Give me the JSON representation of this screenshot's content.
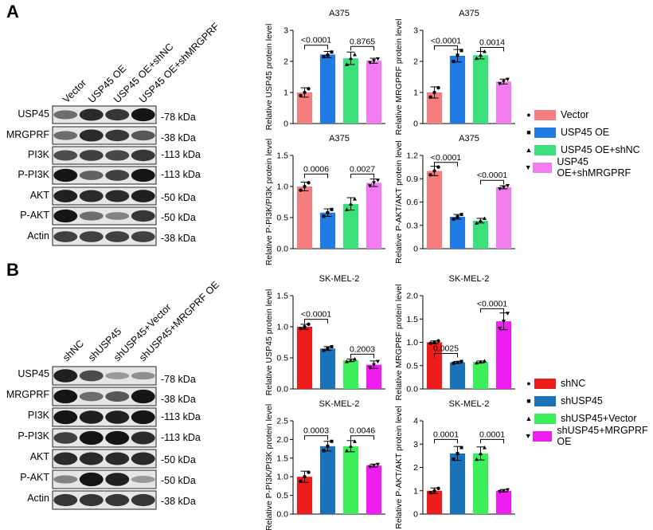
{
  "panels": [
    {
      "letter": "A",
      "lanes": [
        "Vector",
        "USP45 OE",
        "USP45 OE+shNC",
        "USP45 OE+shMRGPRF"
      ],
      "blots": [
        {
          "protein": "USP45",
          "kda": "-78 kDa"
        },
        {
          "protein": "MRGPRF",
          "kda": "-38 kDa"
        },
        {
          "protein": "PI3K",
          "kda": "-113 kDa"
        },
        {
          "protein": "P-PI3K",
          "kda": "-113 kDa"
        },
        {
          "protein": "AKT",
          "kda": "-50 kDa"
        },
        {
          "protein": "P-AKT",
          "kda": "-50 kDa"
        },
        {
          "protein": "Actin",
          "kda": "-38 kDa"
        }
      ],
      "band_intensity": [
        [
          0.55,
          0.85,
          0.8,
          0.95
        ],
        [
          0.55,
          0.85,
          0.8,
          0.65
        ],
        [
          0.7,
          0.75,
          0.72,
          0.8
        ],
        [
          0.95,
          0.6,
          0.75,
          0.95
        ],
        [
          0.9,
          0.85,
          0.85,
          0.9
        ],
        [
          0.95,
          0.55,
          0.45,
          0.8
        ],
        [
          0.75,
          0.75,
          0.75,
          0.75
        ]
      ],
      "legend": [
        "Vector",
        "USP45 OE",
        "USP45 OE+shNC",
        "USP45 OE+shMRGPRF"
      ],
      "legend_markers": [
        "●",
        "■",
        "▲",
        "▼"
      ]
    },
    {
      "letter": "B",
      "lanes": [
        "shNC",
        "shUSP45",
        "shUSP45+Vector",
        "shUSP45+MRGPRF OE"
      ],
      "blots": [
        {
          "protein": "USP45",
          "kda": "-78 kDa"
        },
        {
          "protein": "MRGPRF",
          "kda": "-38 kDa"
        },
        {
          "protein": "PI3K",
          "kda": "-113 kDa"
        },
        {
          "protein": "P-PI3K",
          "kda": "-113 kDa"
        },
        {
          "protein": "AKT",
          "kda": "-50 kDa"
        },
        {
          "protein": "P-AKT",
          "kda": "-50 kDa"
        },
        {
          "protein": "Actin",
          "kda": "-38 kDa"
        }
      ],
      "band_intensity": [
        [
          0.9,
          0.7,
          0.35,
          0.4
        ],
        [
          0.95,
          0.55,
          0.65,
          0.95
        ],
        [
          0.95,
          0.9,
          0.9,
          0.95
        ],
        [
          0.75,
          0.95,
          0.95,
          0.85
        ],
        [
          0.85,
          0.85,
          0.85,
          0.85
        ],
        [
          0.45,
          0.95,
          0.9,
          0.35
        ],
        [
          0.8,
          0.8,
          0.8,
          0.8
        ]
      ],
      "legend": [
        "shNC",
        "shUSP45",
        "shUSP45+Vector",
        "shUSP45+MRGPRF OE"
      ],
      "legend_markers": [
        "●",
        "■",
        "▲",
        "▼"
      ]
    }
  ],
  "colors": {
    "A": [
      "#f47e7e",
      "#1f7be3",
      "#3be07a",
      "#f07cf0"
    ],
    "B": [
      "#ee1d1d",
      "#1a73b8",
      "#3bee5a",
      "#ee1df0"
    ]
  },
  "chart_data": [
    {
      "type": "bar",
      "panel": "A",
      "title": "A375",
      "ylabel": "Relative USP45 protein level",
      "categories": [
        "Vector",
        "USP45 OE",
        "USP45 OE+shNC",
        "USP45 OE+shMRGPRF"
      ],
      "values": [
        1.0,
        2.22,
        2.1,
        2.02
      ],
      "errors": [
        0.15,
        0.1,
        0.2,
        0.08
      ],
      "points": [
        [
          0.9,
          1.0,
          1.12
        ],
        [
          2.15,
          2.2,
          2.3
        ],
        [
          1.9,
          2.1,
          2.22
        ],
        [
          1.96,
          2.02,
          2.08
        ]
      ],
      "ylim": [
        0,
        3
      ],
      "yticks": [
        "0",
        "1",
        "2",
        "3"
      ],
      "ytick_values": [
        0,
        1,
        2,
        3
      ],
      "comparisons": [
        {
          "from": 0,
          "to": 1,
          "label": "<0.0001",
          "y": 2.52
        },
        {
          "from": 2,
          "to": 3,
          "label": "0.8765",
          "y": 2.48
        }
      ]
    },
    {
      "type": "bar",
      "panel": "A",
      "title": "A375",
      "ylabel": "Relative MRGPRF protein level",
      "categories": [
        "Vector",
        "USP45 OE",
        "USP45 OE+shNC",
        "USP45 OE+shMRGPRF"
      ],
      "values": [
        1.0,
        2.18,
        2.2,
        1.35
      ],
      "errors": [
        0.18,
        0.2,
        0.12,
        0.08
      ],
      "points": [
        [
          0.85,
          1.0,
          1.15
        ],
        [
          2.0,
          2.2,
          2.35
        ],
        [
          2.1,
          2.2,
          2.32
        ],
        [
          1.28,
          1.35,
          1.42
        ]
      ],
      "ylim": [
        0,
        3
      ],
      "yticks": [
        "0",
        "1",
        "2",
        "3"
      ],
      "ytick_values": [
        0,
        1,
        2,
        3
      ],
      "comparisons": [
        {
          "from": 0,
          "to": 1,
          "label": "<0.0001",
          "y": 2.5
        },
        {
          "from": 2,
          "to": 3,
          "label": "0.0014",
          "y": 2.45
        }
      ]
    },
    {
      "type": "bar",
      "panel": "A",
      "title": "A375",
      "ylabel": "Relative P-PI3K/PI3K protein level",
      "categories": [
        "Vector",
        "USP45 OE",
        "USP45 OE+shNC",
        "USP45 OE+shMRGPRF"
      ],
      "values": [
        1.0,
        0.58,
        0.72,
        1.06
      ],
      "errors": [
        0.07,
        0.06,
        0.1,
        0.06
      ],
      "points": [
        [
          0.94,
          1.0,
          1.06
        ],
        [
          0.52,
          0.58,
          0.63
        ],
        [
          0.63,
          0.72,
          0.8
        ],
        [
          1.01,
          1.06,
          1.1
        ]
      ],
      "ylim": [
        0,
        1.5
      ],
      "yticks": [
        "0.0",
        "0.5",
        "1.0",
        "1.5"
      ],
      "ytick_values": [
        0,
        0.5,
        1.0,
        1.5
      ],
      "comparisons": [
        {
          "from": 0,
          "to": 1,
          "label": "0.0006",
          "y": 1.2
        },
        {
          "from": 2,
          "to": 3,
          "label": "0.0027",
          "y": 1.2
        }
      ]
    },
    {
      "type": "bar",
      "panel": "A",
      "title": "A375",
      "ylabel": "Relative P-AKT/AKT protein level",
      "categories": [
        "Vector",
        "USP45 OE",
        "USP45 OE+shNC",
        "USP45 OE+shMRGPRF"
      ],
      "values": [
        1.0,
        0.41,
        0.36,
        0.79
      ],
      "errors": [
        0.06,
        0.03,
        0.03,
        0.02
      ],
      "points": [
        [
          0.95,
          1.0,
          1.05
        ],
        [
          0.38,
          0.41,
          0.44
        ],
        [
          0.33,
          0.36,
          0.39
        ],
        [
          0.77,
          0.79,
          0.81
        ]
      ],
      "ylim": [
        0,
        1.2
      ],
      "yticks": [
        "0",
        "0.3",
        "0.6",
        "0.9",
        "1.2"
      ],
      "ytick_values": [
        0,
        0.3,
        0.6,
        0.9,
        1.2
      ],
      "comparisons": [
        {
          "from": 0,
          "to": 1,
          "label": "<0.0001",
          "y": 1.11
        },
        {
          "from": 2,
          "to": 3,
          "label": "<0.0001",
          "y": 0.88
        }
      ]
    },
    {
      "type": "bar",
      "panel": "B",
      "title": "SK-MEL-2",
      "ylabel": "Relative USP45 protein level",
      "categories": [
        "shNC",
        "shUSP45",
        "shUSP45+Vector",
        "shUSP45+MRGPRF OE"
      ],
      "values": [
        1.0,
        0.65,
        0.46,
        0.39
      ],
      "errors": [
        0.04,
        0.03,
        0.02,
        0.06
      ],
      "points": [
        [
          0.97,
          1.0,
          1.04
        ],
        [
          0.62,
          0.65,
          0.68
        ],
        [
          0.44,
          0.46,
          0.48
        ],
        [
          0.34,
          0.39,
          0.44
        ]
      ],
      "ylim": [
        0,
        1.5
      ],
      "yticks": [
        "0.0",
        "0.5",
        "1.0",
        "1.5"
      ],
      "ytick_values": [
        0,
        0.5,
        1.0,
        1.5
      ],
      "comparisons": [
        {
          "from": 0,
          "to": 1,
          "label": "<0.0001",
          "y": 1.12
        },
        {
          "from": 2,
          "to": 3,
          "label": "0.2003",
          "y": 0.56
        }
      ]
    },
    {
      "type": "bar",
      "panel": "B",
      "title": "SK-MEL-2",
      "ylabel": "Relative MRGPRF protein level",
      "categories": [
        "shNC",
        "shUSP45",
        "shUSP45+Vector",
        "shUSP45+MRGPRF OE"
      ],
      "values": [
        1.0,
        0.57,
        0.58,
        1.45
      ],
      "errors": [
        0.03,
        0.02,
        0.02,
        0.18
      ],
      "points": [
        [
          0.98,
          1.0,
          1.03
        ],
        [
          0.55,
          0.57,
          0.59
        ],
        [
          0.56,
          0.58,
          0.6
        ],
        [
          1.3,
          1.45,
          1.62
        ]
      ],
      "ylim": [
        0,
        2.0
      ],
      "yticks": [
        "0.0",
        "0.5",
        "1.0",
        "1.5",
        "2.0"
      ],
      "ytick_values": [
        0,
        0.5,
        1.0,
        1.5,
        2.0
      ],
      "comparisons": [
        {
          "from": 0,
          "to": 1,
          "label": "0.0025",
          "y": 0.76
        },
        {
          "from": 2,
          "to": 3,
          "label": "<0.0001",
          "y": 1.72
        }
      ]
    },
    {
      "type": "bar",
      "panel": "B",
      "title": "SK-MEL-2",
      "ylabel": "Relative P-PI3K/PI3K protein level",
      "categories": [
        "shNC",
        "shUSP45",
        "shUSP45+Vector",
        "shUSP45+MRGPRF OE"
      ],
      "values": [
        1.0,
        1.82,
        1.82,
        1.3
      ],
      "errors": [
        0.15,
        0.13,
        0.15,
        0.04
      ],
      "points": [
        [
          0.88,
          1.0,
          1.12
        ],
        [
          1.7,
          1.82,
          1.95
        ],
        [
          1.7,
          1.82,
          1.95
        ],
        [
          1.27,
          1.3,
          1.33
        ]
      ],
      "ylim": [
        0,
        2.5
      ],
      "yticks": [
        "0.0",
        "0.5",
        "1.0",
        "1.5",
        "2.0",
        "2.5"
      ],
      "ytick_values": [
        0,
        0.5,
        1.0,
        1.5,
        2.0,
        2.5
      ],
      "comparisons": [
        {
          "from": 0,
          "to": 1,
          "label": "0.0003",
          "y": 2.1
        },
        {
          "from": 2,
          "to": 3,
          "label": "0.0046",
          "y": 2.1
        }
      ]
    },
    {
      "type": "bar",
      "panel": "B",
      "title": "SK-MEL-2",
      "ylabel": "Relative P-AKT/AKT protein level",
      "categories": [
        "shNC",
        "shUSP45",
        "shUSP45+Vector",
        "shUSP45+MRGPRF OE"
      ],
      "values": [
        1.0,
        2.6,
        2.6,
        1.0
      ],
      "errors": [
        0.12,
        0.3,
        0.28,
        0.05
      ],
      "points": [
        [
          0.92,
          1.0,
          1.1
        ],
        [
          2.35,
          2.6,
          2.85
        ],
        [
          2.35,
          2.6,
          2.85
        ],
        [
          0.96,
          1.0,
          1.04
        ]
      ],
      "ylim": [
        0,
        4
      ],
      "yticks": [
        "0",
        "1",
        "2",
        "3",
        "4"
      ],
      "ytick_values": [
        0,
        1,
        2,
        3,
        4
      ],
      "comparisons": [
        {
          "from": 0,
          "to": 1,
          "label": "0.0001",
          "y": 3.2
        },
        {
          "from": 2,
          "to": 3,
          "label": "0.0001",
          "y": 3.2
        }
      ]
    }
  ]
}
